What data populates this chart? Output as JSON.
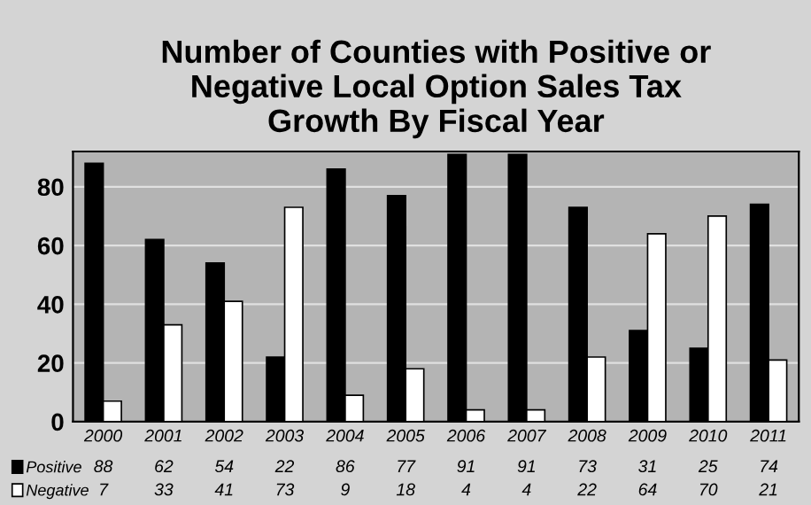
{
  "chart_data": {
    "type": "bar",
    "title": "Number of Counties with Positive or\nNegative Local Option Sales Tax\nGrowth By Fiscal Year",
    "categories": [
      "2000",
      "2001",
      "2002",
      "2003",
      "2004",
      "2005",
      "2006",
      "2007",
      "2008",
      "2009",
      "2010",
      "2011"
    ],
    "series": [
      {
        "name": "Positive",
        "color": "#000000",
        "values": [
          88,
          62,
          54,
          22,
          86,
          77,
          91,
          91,
          73,
          31,
          25,
          74
        ]
      },
      {
        "name": "Negative",
        "color": "#ffffff",
        "values": [
          7,
          33,
          41,
          73,
          9,
          18,
          4,
          4,
          22,
          64,
          70,
          21
        ]
      }
    ],
    "ylim": [
      0,
      92
    ],
    "yticks": [
      0,
      20,
      40,
      60,
      80
    ],
    "grid": "y",
    "legend": "bottom",
    "data_labels": true
  }
}
